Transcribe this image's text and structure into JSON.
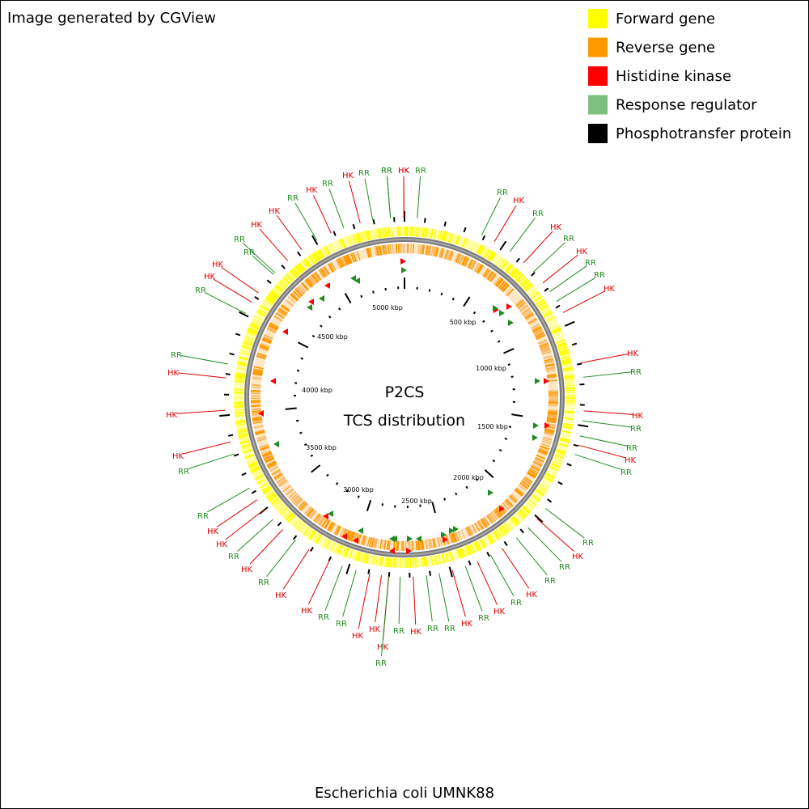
{
  "header": {
    "credit": "Image generated by CGView"
  },
  "legend": [
    {
      "label": "Forward gene",
      "color": "#ffff00"
    },
    {
      "label": "Reverse gene",
      "color": "#ff9900"
    },
    {
      "label": "Histidine kinase",
      "color": "#ff0000"
    },
    {
      "label": "Response regulator",
      "color": "#7fbf7f"
    },
    {
      "label": "Phosphotransfer protein",
      "color": "#000000"
    }
  ],
  "center": {
    "title": "P2CS",
    "subtitle": "TCS distribution"
  },
  "scale_labels": [
    "500 kbp",
    "1000 kbp",
    "1500 kbp",
    "2000 kbp",
    "2500 kbp",
    "3000 kbp",
    "3500 kbp",
    "4000 kbp",
    "4500 kbp",
    "5000 kbp"
  ],
  "feature_labels": [
    {
      "label": "RR",
      "color": "#228b22"
    },
    {
      "label": "HK",
      "color": "#e00000"
    },
    {
      "label": "RR",
      "color": "#228b22"
    },
    {
      "label": "RR",
      "color": "#228b22"
    },
    {
      "label": "HK",
      "color": "#e00000"
    },
    {
      "label": "RR",
      "color": "#228b22"
    },
    {
      "label": "HK",
      "color": "#e00000"
    },
    {
      "label": "RR",
      "color": "#228b22"
    },
    {
      "label": "HK",
      "color": "#e00000"
    },
    {
      "label": "RR",
      "color": "#228b22"
    },
    {
      "label": "RR",
      "color": "#228b22"
    },
    {
      "label": "HK",
      "color": "#e00000"
    },
    {
      "label": "HK",
      "color": "#e00000"
    },
    {
      "label": "RR",
      "color": "#228b22"
    },
    {
      "label": "HK",
      "color": "#e00000"
    },
    {
      "label": "RR",
      "color": "#228b22"
    },
    {
      "label": "RR",
      "color": "#228b22"
    },
    {
      "label": "HK",
      "color": "#e00000"
    },
    {
      "label": "RR",
      "color": "#228b22"
    },
    {
      "label": "RR",
      "color": "#228b22"
    },
    {
      "label": "HK",
      "color": "#e00000"
    },
    {
      "label": "RR",
      "color": "#228b22"
    },
    {
      "label": "RR",
      "color": "#228b22"
    },
    {
      "label": "HK",
      "color": "#e00000"
    },
    {
      "label": "RR",
      "color": "#228b22"
    },
    {
      "label": "HK",
      "color": "#e00000"
    },
    {
      "label": "RR",
      "color": "#228b22"
    },
    {
      "label": "HK",
      "color": "#e00000"
    },
    {
      "label": "RR",
      "color": "#228b22"
    },
    {
      "label": "RR",
      "color": "#228b22"
    },
    {
      "label": "HK",
      "color": "#e00000"
    },
    {
      "label": "RR",
      "color": "#228b22"
    },
    {
      "label": "HK",
      "color": "#e00000"
    },
    {
      "label": "RR",
      "color": "#228b22"
    },
    {
      "label": "HK",
      "color": "#e00000"
    },
    {
      "label": "HK",
      "color": "#e00000"
    },
    {
      "label": "RR",
      "color": "#228b22"
    },
    {
      "label": "RR",
      "color": "#228b22"
    },
    {
      "label": "HK",
      "color": "#e00000"
    },
    {
      "label": "HK",
      "color": "#e00000"
    },
    {
      "label": "RR",
      "color": "#228b22"
    },
    {
      "label": "HK",
      "color": "#e00000"
    },
    {
      "label": "RR",
      "color": "#228b22"
    },
    {
      "label": "HK",
      "color": "#e00000"
    },
    {
      "label": "HK",
      "color": "#e00000"
    },
    {
      "label": "RR",
      "color": "#228b22"
    },
    {
      "label": "RR",
      "color": "#228b22"
    },
    {
      "label": "HK",
      "color": "#e00000"
    },
    {
      "label": "HK",
      "color": "#e00000"
    },
    {
      "label": "RR",
      "color": "#228b22"
    },
    {
      "label": "HK",
      "color": "#e00000"
    },
    {
      "label": "RR",
      "color": "#228b22"
    },
    {
      "label": "HK",
      "color": "#e00000"
    },
    {
      "label": "HK",
      "color": "#e00000"
    },
    {
      "label": "RR",
      "color": "#228b22"
    },
    {
      "label": "RR",
      "color": "#228b22"
    },
    {
      "label": "HK",
      "color": "#e00000"
    },
    {
      "label": "HK",
      "color": "#e00000"
    },
    {
      "label": "RR",
      "color": "#228b22"
    },
    {
      "label": "HK",
      "color": "#e00000"
    },
    {
      "label": "RR",
      "color": "#228b22"
    },
    {
      "label": "HK",
      "color": "#e00000"
    },
    {
      "label": "RR",
      "color": "#228b22"
    },
    {
      "label": "RR",
      "color": "#228b22"
    },
    {
      "label": "HK",
      "color": "#e00000"
    }
  ],
  "footer": "Escherichia coli UMNK88"
}
